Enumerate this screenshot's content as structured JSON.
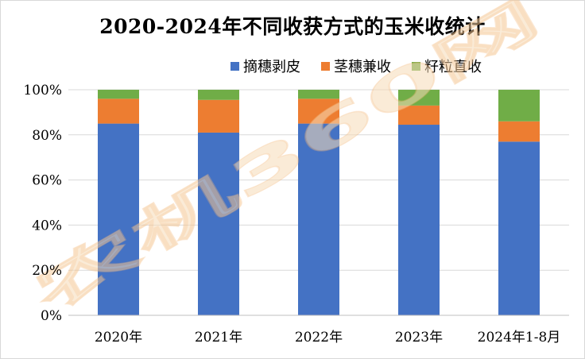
{
  "colors": {
    "blue": "#4472c4",
    "orange": "#ed7d31",
    "green": "#70ad47",
    "grid": "#d9d9d9",
    "axis": "#bfbfbf",
    "watermark": "#f6c68a"
  },
  "chart_data": {
    "type": "bar",
    "stacked": true,
    "percent": true,
    "title": "2020-2024年不同收获方式的玉米收统计",
    "xlabel": "",
    "ylabel": "",
    "categories": [
      "2020年",
      "2021年",
      "2022年",
      "2023年",
      "2024年1-8月"
    ],
    "series": [
      {
        "name": "摘穗剥皮",
        "color": "#4472c4",
        "values": [
          85,
          81,
          85,
          84.5,
          77
        ]
      },
      {
        "name": "茎穗兼收",
        "color": "#ed7d31",
        "values": [
          11,
          14.5,
          11,
          8.5,
          9
        ]
      },
      {
        "name": "籽粒直收",
        "color": "#70ad47",
        "values": [
          4,
          4.5,
          4,
          7,
          14
        ]
      }
    ],
    "ylim": [
      0,
      100
    ],
    "yticks": [
      "0%",
      "20%",
      "40%",
      "60%",
      "80%",
      "100%"
    ],
    "grid": true,
    "legend": "top"
  },
  "watermark": {
    "text": "农机360网"
  }
}
